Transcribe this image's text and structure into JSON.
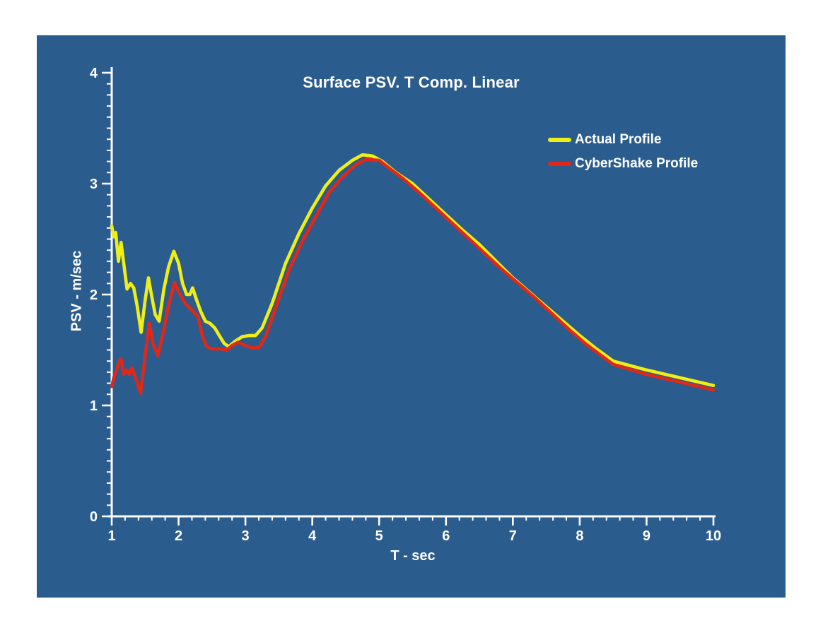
{
  "chart_data": {
    "type": "line",
    "title": "Surface PSV. T Comp. Linear",
    "xlabel": "T - sec",
    "ylabel": "PSV - m/sec",
    "xlim": [
      1,
      10
    ],
    "ylim": [
      0,
      4
    ],
    "x_major_ticks": [
      1,
      2,
      3,
      4,
      5,
      6,
      7,
      8,
      9,
      10
    ],
    "y_major_ticks": [
      0,
      1,
      2,
      3,
      4
    ],
    "x_minor_step": 0.2,
    "y_minor_step": 0.1,
    "grid": false,
    "legend_position": "upper-right",
    "colors": {
      "background": "#2B5C8E",
      "axis": "#FFFFFF",
      "text": "#FFFFFF"
    },
    "series": [
      {
        "name": "Actual Profile",
        "color": "#EFEF15",
        "x": [
          1.0,
          1.03,
          1.06,
          1.1,
          1.14,
          1.18,
          1.23,
          1.28,
          1.33,
          1.38,
          1.44,
          1.5,
          1.55,
          1.6,
          1.65,
          1.71,
          1.78,
          1.85,
          1.93,
          2.0,
          2.06,
          2.12,
          2.17,
          2.21,
          2.27,
          2.33,
          2.4,
          2.47,
          2.54,
          2.61,
          2.68,
          2.75,
          2.85,
          2.95,
          3.05,
          3.15,
          3.25,
          3.4,
          3.6,
          3.8,
          4.0,
          4.2,
          4.4,
          4.6,
          4.75,
          4.9,
          5.05,
          5.25,
          5.5,
          5.75,
          6.0,
          6.25,
          6.5,
          6.75,
          7.0,
          7.25,
          7.5,
          7.75,
          8.0,
          8.25,
          8.5,
          9.0,
          9.5,
          10.0
        ],
        "y": [
          2.62,
          2.52,
          2.56,
          2.3,
          2.47,
          2.28,
          2.05,
          2.1,
          2.06,
          1.9,
          1.66,
          1.95,
          2.15,
          1.98,
          1.82,
          1.76,
          2.05,
          2.25,
          2.39,
          2.28,
          2.1,
          2.0,
          2.0,
          2.06,
          1.95,
          1.85,
          1.76,
          1.74,
          1.7,
          1.63,
          1.56,
          1.53,
          1.58,
          1.62,
          1.63,
          1.63,
          1.7,
          1.92,
          2.28,
          2.55,
          2.78,
          2.98,
          3.12,
          3.21,
          3.26,
          3.25,
          3.2,
          3.1,
          3.0,
          2.86,
          2.72,
          2.58,
          2.45,
          2.3,
          2.15,
          2.02,
          1.89,
          1.76,
          1.63,
          1.51,
          1.4,
          1.32,
          1.25,
          1.18
        ]
      },
      {
        "name": "CyberShake Profile",
        "color": "#DF2817",
        "x": [
          1.0,
          1.04,
          1.08,
          1.11,
          1.14,
          1.18,
          1.22,
          1.26,
          1.3,
          1.35,
          1.43,
          1.5,
          1.56,
          1.62,
          1.69,
          1.75,
          1.85,
          1.94,
          2.02,
          2.1,
          2.2,
          2.29,
          2.36,
          2.42,
          2.5,
          2.58,
          2.65,
          2.72,
          2.8,
          2.89,
          3.0,
          3.1,
          3.2,
          3.3,
          3.45,
          3.65,
          3.85,
          4.05,
          4.25,
          4.45,
          4.65,
          4.8,
          5.0,
          5.15,
          5.35,
          5.6,
          5.85,
          6.1,
          6.35,
          6.6,
          6.85,
          7.1,
          7.35,
          7.6,
          7.85,
          8.1,
          8.5,
          9.0,
          9.5,
          10.0
        ],
        "y": [
          1.17,
          1.27,
          1.33,
          1.4,
          1.42,
          1.28,
          1.32,
          1.28,
          1.34,
          1.26,
          1.11,
          1.45,
          1.74,
          1.55,
          1.45,
          1.6,
          1.9,
          2.11,
          2.0,
          1.92,
          1.86,
          1.8,
          1.62,
          1.53,
          1.51,
          1.51,
          1.51,
          1.5,
          1.54,
          1.57,
          1.54,
          1.52,
          1.52,
          1.62,
          1.88,
          2.22,
          2.48,
          2.7,
          2.92,
          3.06,
          3.17,
          3.22,
          3.21,
          3.14,
          3.05,
          2.92,
          2.78,
          2.64,
          2.5,
          2.36,
          2.22,
          2.09,
          1.96,
          1.82,
          1.68,
          1.55,
          1.37,
          1.28,
          1.21,
          1.14
        ]
      }
    ]
  }
}
